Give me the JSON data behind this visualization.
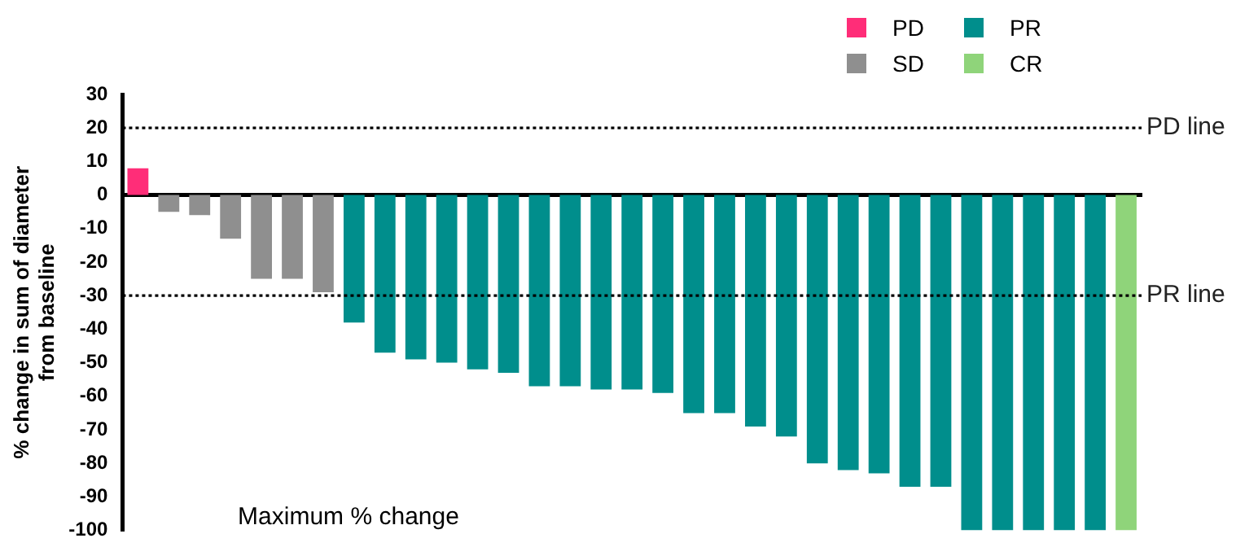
{
  "chart_data": {
    "type": "bar",
    "ylabel": "% change in sum of diameter\nfrom baseline",
    "categories": [
      null,
      null,
      null,
      null,
      null,
      null,
      null,
      null,
      null,
      null,
      null,
      null,
      null,
      null,
      null,
      null,
      null,
      null,
      null,
      null,
      null,
      null,
      null,
      null,
      null,
      null,
      null,
      null,
      null,
      null,
      null,
      null,
      null
    ],
    "series": [
      {
        "name": "PD",
        "color": "#ff2d78",
        "values": [
          8,
          null,
          null,
          null,
          null,
          null,
          null,
          null,
          null,
          null,
          null,
          null,
          null,
          null,
          null,
          null,
          null,
          null,
          null,
          null,
          null,
          null,
          null,
          null,
          null,
          null,
          null,
          null,
          null,
          null,
          null,
          null,
          null
        ]
      },
      {
        "name": "SD",
        "color": "#8f8f8f",
        "values": [
          null,
          -5,
          -6,
          -13,
          -25,
          -25,
          -29,
          null,
          null,
          null,
          null,
          null,
          null,
          null,
          null,
          null,
          null,
          null,
          null,
          null,
          null,
          null,
          null,
          null,
          null,
          null,
          null,
          null,
          null,
          null,
          null,
          null,
          null
        ]
      },
      {
        "name": "PR",
        "color": "#008e8c",
        "values": [
          null,
          null,
          null,
          null,
          null,
          null,
          null,
          -38,
          -47,
          -49,
          -50,
          -52,
          -53,
          -57,
          -57,
          -58,
          -58,
          -59,
          -65,
          -65,
          -69,
          -72,
          -80,
          -82,
          -83,
          -87,
          -87,
          -100,
          -100,
          -100,
          -100,
          -100,
          null
        ]
      },
      {
        "name": "CR",
        "color": "#8fd47a",
        "values": [
          null,
          null,
          null,
          null,
          null,
          null,
          null,
          null,
          null,
          null,
          null,
          null,
          null,
          null,
          null,
          null,
          null,
          null,
          null,
          null,
          null,
          null,
          null,
          null,
          null,
          null,
          null,
          null,
          null,
          null,
          null,
          null,
          -100
        ]
      }
    ],
    "ylim": [
      -100,
      30
    ],
    "yticks": [
      -100,
      -90,
      -80,
      -70,
      -60,
      -50,
      -40,
      -30,
      -20,
      -10,
      0,
      10,
      20,
      30
    ],
    "grid": false,
    "legend": "top right",
    "ref_lines": [
      {
        "axis": "y",
        "value": 20,
        "label": "PD line",
        "line_style": "dotted"
      },
      {
        "axis": "y",
        "value": -30,
        "label": "PR line",
        "line_style": "dotted"
      }
    ],
    "annotations": [
      "Maximum % change"
    ]
  }
}
